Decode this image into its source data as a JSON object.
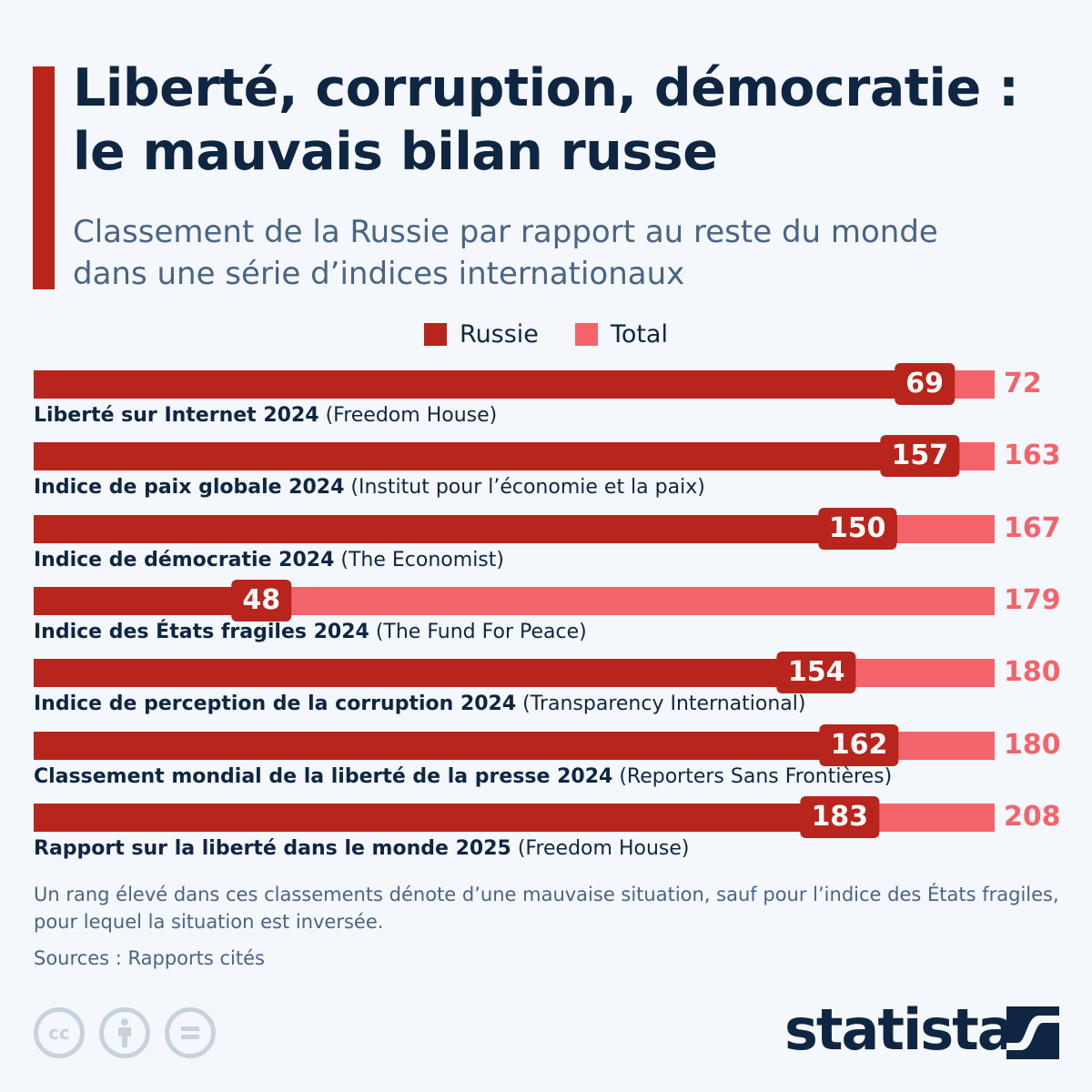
{
  "header": {
    "title_line1": "Liberté, corruption, démocratie :",
    "title_line2": "le mauvais bilan russe",
    "subtitle_line1": "Classement de la Russie par rapport au reste du monde",
    "subtitle_line2": "dans une série d’indices internationaux"
  },
  "colors": {
    "russie": "#b8251c",
    "total": "#f5636a",
    "text": "#0f2642",
    "muted": "#4a6483"
  },
  "chart_data": {
    "type": "bar",
    "orientation": "horizontal",
    "title": "Liberté, corruption, démocratie : le mauvais bilan russe",
    "subtitle": "Classement de la Russie par rapport au reste du monde dans une série d’indices internationaux",
    "legend": {
      "position": "top-center",
      "entries": [
        "Russie",
        "Total"
      ]
    },
    "categories": [
      {
        "name": "Liberté sur Internet 2024",
        "source": "(Freedom House)"
      },
      {
        "name": "Indice de paix globale 2024",
        "source": "(Institut pour l’économie et la paix)"
      },
      {
        "name": "Indice de démocratie 2024",
        "source": "(The Economist)"
      },
      {
        "name": "Indice des États fragiles 2024",
        "source": "(The Fund For Peace)"
      },
      {
        "name": "Indice de perception de la corruption 2024",
        "source": "(Transparency International)"
      },
      {
        "name": "Classement mondial de la liberté de la presse 2024",
        "source": "(Reporters Sans Frontières)"
      },
      {
        "name": "Rapport sur la liberté dans le monde 2025",
        "source": "(Freedom House)"
      }
    ],
    "series": [
      {
        "name": "Russie",
        "values": [
          69,
          157,
          150,
          48,
          154,
          162,
          183
        ]
      },
      {
        "name": "Total",
        "values": [
          72,
          163,
          167,
          179,
          180,
          180,
          208
        ]
      }
    ],
    "xlabel": "",
    "ylabel": ""
  },
  "footer": {
    "note": "Un rang élevé dans ces classements dénote d’une mauvaise situation, sauf pour l’indice des États fragiles, pour lequel la situation est inversée.",
    "sources": "Sources : Rapports cités",
    "license_icons": [
      "cc-icon",
      "attribution-icon",
      "no-derivatives-icon"
    ],
    "brand": "statista"
  }
}
